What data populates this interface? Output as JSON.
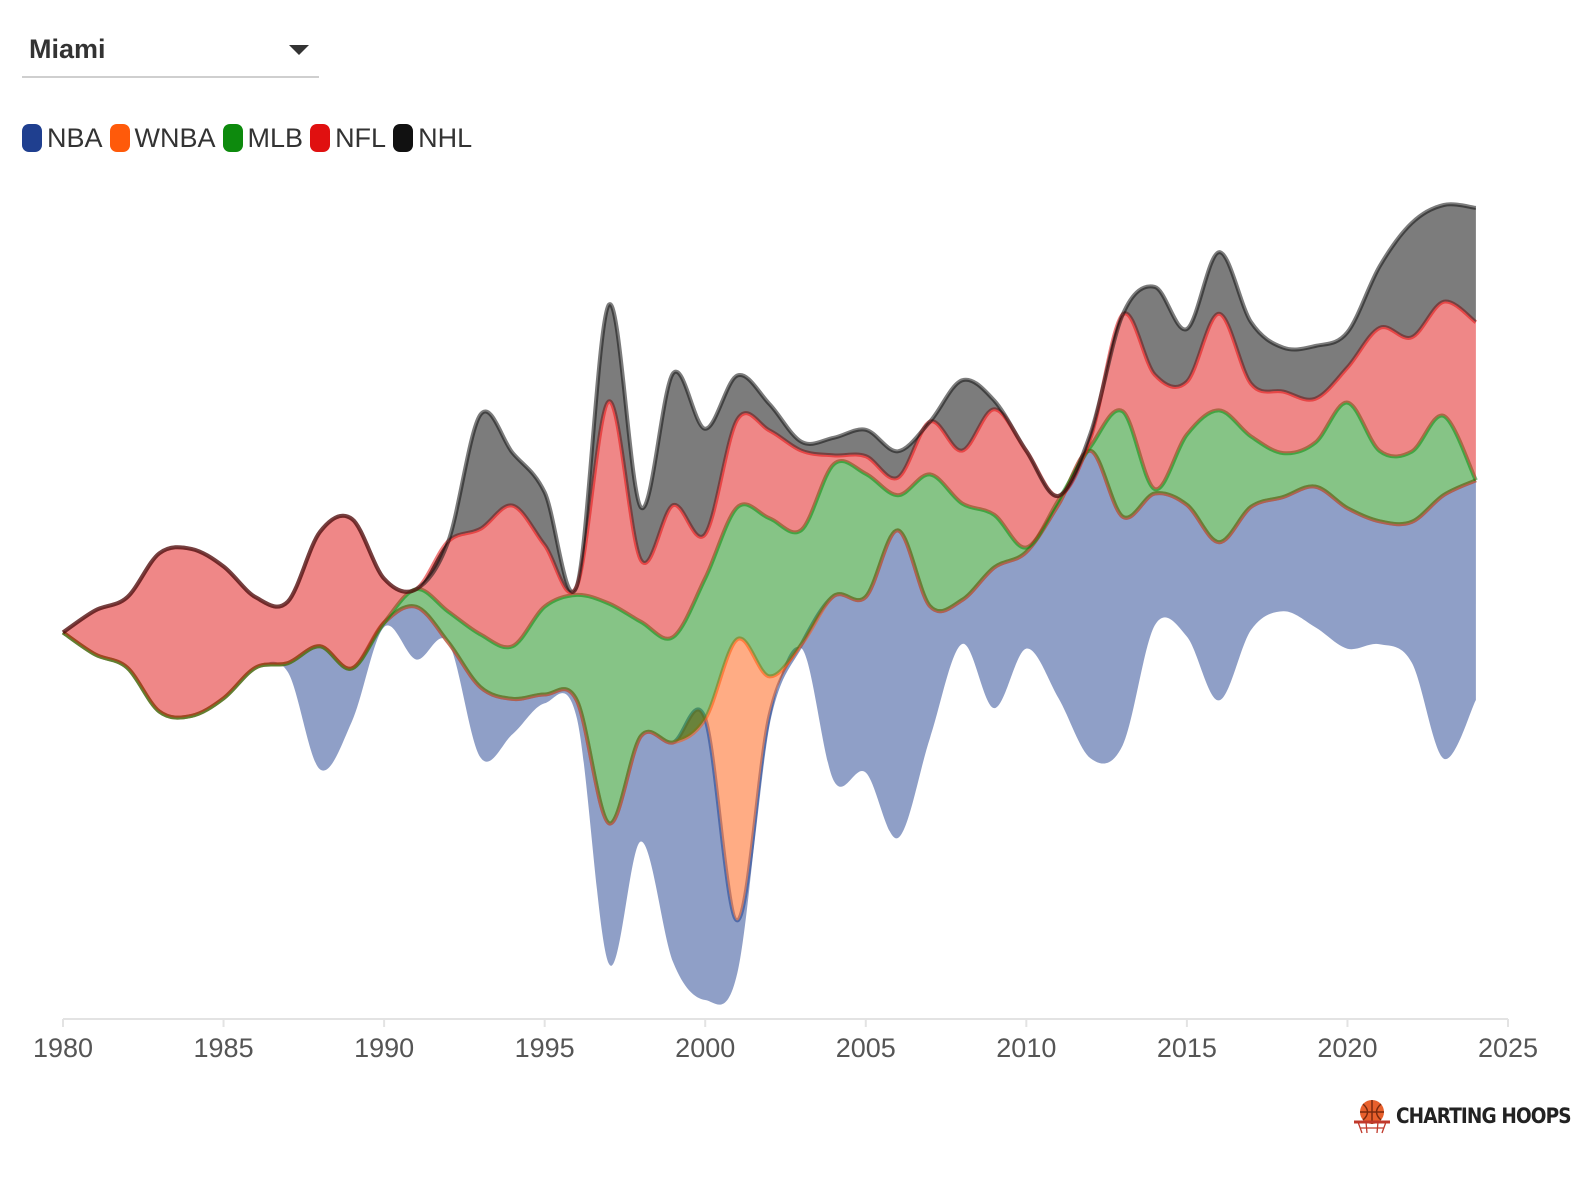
{
  "selector": {
    "selected_city": "Miami",
    "icon": "caret-down-icon"
  },
  "chart_data": {
    "type": "area",
    "subtype": "streamgraph",
    "x": [
      1980,
      1981,
      1982,
      1983,
      1984,
      1985,
      1986,
      1987,
      1988,
      1989,
      1990,
      1991,
      1992,
      1993,
      1994,
      1995,
      1996,
      1997,
      1998,
      1999,
      2000,
      2001,
      2002,
      2003,
      2004,
      2005,
      2006,
      2007,
      2008,
      2009,
      2010,
      2011,
      2012,
      2013,
      2014,
      2015,
      2016,
      2017,
      2018,
      2019,
      2020,
      2021,
      2022,
      2023,
      2024
    ],
    "x_ticks": [
      "1980",
      "1985",
      "1990",
      "1995",
      "2000",
      "2005",
      "2010",
      "2015",
      "2020",
      "2025"
    ],
    "xlim": [
      1980,
      2025
    ],
    "baseline": "wiggle",
    "series": [
      {
        "name": "NBA",
        "color": "#1f3f8f",
        "values": [
          0,
          0,
          0,
          0,
          0,
          0,
          0,
          0.1,
          1.4,
          0.6,
          0.05,
          0.6,
          0,
          0.8,
          0.4,
          0.1,
          0.2,
          1.6,
          1.2,
          2.5,
          3.2,
          0.6,
          0.1,
          0.05,
          2.1,
          2.0,
          3.5,
          1.5,
          0.5,
          1.6,
          1.1,
          2.2,
          3.5,
          2.6,
          1.5,
          1.5,
          1.8,
          1.4,
          1.3,
          1.6,
          1.6,
          1.4,
          1.6,
          3.0,
          2.5
        ]
      },
      {
        "name": "WNBA",
        "color": "#ff5a0a",
        "values": [
          0,
          0,
          0,
          0,
          0,
          0,
          0,
          0,
          0,
          0,
          0,
          0,
          0,
          0,
          0,
          0,
          0,
          0,
          0,
          0,
          0,
          3.2,
          0.45,
          0,
          0,
          0,
          0,
          0,
          0,
          0,
          0,
          0,
          0,
          0,
          0,
          0,
          0,
          0,
          0,
          0,
          0,
          0,
          0,
          0,
          0
        ]
      },
      {
        "name": "MLB",
        "color": "#0d8a0d",
        "values": [
          0,
          0,
          0,
          0,
          0,
          0,
          0,
          0,
          0,
          0,
          0,
          0.2,
          0.35,
          0.6,
          0.6,
          1.0,
          1.2,
          2.5,
          1.3,
          1.2,
          1.6,
          1.5,
          1.8,
          1.3,
          1.5,
          1.4,
          0.4,
          1.5,
          1.1,
          0.6,
          0.05,
          0.05,
          0.05,
          1.2,
          0.05,
          0.8,
          1.5,
          0.8,
          0.5,
          0.5,
          1.2,
          0.8,
          0.8,
          0.9,
          0
        ]
      },
      {
        "name": "NFL",
        "color": "#e01010",
        "values": [
          0,
          0.5,
          0.8,
          1.8,
          1.9,
          1.5,
          0.8,
          0.7,
          1.3,
          1.7,
          0.5,
          0,
          0.8,
          1.2,
          1.6,
          0.7,
          0.1,
          2.3,
          0.7,
          1.5,
          0.5,
          1.0,
          1.0,
          0.9,
          0.1,
          0.2,
          0.2,
          0.6,
          0.6,
          1.2,
          1.1,
          0.05,
          0.1,
          1.1,
          1.3,
          0.6,
          1.1,
          0.6,
          0.7,
          0.5,
          0.4,
          1.4,
          1.3,
          1.3,
          1.8
        ]
      },
      {
        "name": "NHL",
        "color": "#111111",
        "values": [
          0,
          0,
          0,
          0,
          0,
          0,
          0,
          0,
          0,
          0,
          0,
          0,
          0,
          1.3,
          0.6,
          0.6,
          0,
          1.1,
          0.6,
          1.5,
          1.2,
          0.5,
          0.3,
          0.1,
          0.2,
          0.3,
          0.3,
          0,
          0.8,
          0.1,
          0,
          0,
          0.05,
          0,
          1.0,
          0.6,
          0.7,
          0.7,
          0.5,
          0.6,
          0.4,
          0.7,
          1.3,
          1.1,
          1.3
        ]
      }
    ],
    "legend": "top-left",
    "grid": false,
    "title": "",
    "xlabel": "",
    "ylabel": ""
  },
  "brand": {
    "text": "CHARTING HOOPS",
    "icon": "basketball-hoop-logo-icon",
    "color": "#e8602c"
  }
}
